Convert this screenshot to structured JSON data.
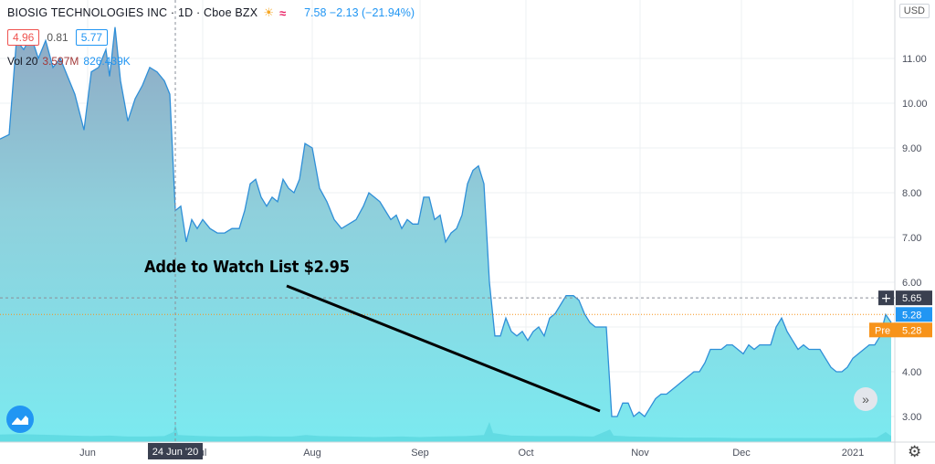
{
  "header": {
    "symbol": "BIOSIG TECHNOLOGIES INC · 1D · Cboe BZX",
    "sun_icon": "sun-icon",
    "premarket_icon": "premarket-icon",
    "price_line": "7.58  −2.13 (−21.94%)",
    "sell": "4.96",
    "spread": "0.81",
    "buy": "5.77",
    "vol_label": "Vol 20",
    "vol_value": "3.597M",
    "vol_ma": "826.439K"
  },
  "currency": "USD",
  "annotation": "Adde to Watch List $2.95",
  "crosshair_date": "24 Jun '20",
  "price_labels": {
    "crosshair": "5.65",
    "last": "5.28",
    "pre_label": "Pre",
    "pre": "5.28"
  },
  "colors": {
    "line": "#2f8fd8",
    "fill_top": "#8fa9c4",
    "fill_bottom": "#7beaf0",
    "volume": "#4fcfd9",
    "pre": "#f7931a",
    "dark": "#3a4050"
  },
  "chart_data": {
    "type": "area",
    "title": "BIOSIG TECHNOLOGIES INC · 1D · Cboe BZX",
    "ylim": [
      2.6,
      11.8
    ],
    "y_ticks": [
      "3.00",
      "4.00",
      "5.00",
      "6.00",
      "7.00",
      "8.00",
      "9.00",
      "10.00",
      "11.00"
    ],
    "x_ticks": [
      {
        "label": "Jun",
        "x": 96
      },
      {
        "label": "ul",
        "x": 222
      },
      {
        "label": "Aug",
        "x": 342
      },
      {
        "label": "Sep",
        "x": 460
      },
      {
        "label": "Oct",
        "x": 576
      },
      {
        "label": "Nov",
        "x": 701
      },
      {
        "label": "Dec",
        "x": 812
      },
      {
        "label": "2021",
        "x": 934
      }
    ],
    "x_range": [
      0,
      980
    ],
    "series": [
      {
        "values": [
          [
            0,
            9.2
          ],
          [
            10,
            9.3
          ],
          [
            18,
            11.4
          ],
          [
            26,
            11.2
          ],
          [
            34,
            11.5
          ],
          [
            42,
            11.0
          ],
          [
            50,
            11.4
          ],
          [
            58,
            10.8
          ],
          [
            66,
            11.0
          ],
          [
            74,
            10.6
          ],
          [
            82,
            10.2
          ],
          [
            92,
            9.4
          ],
          [
            100,
            10.7
          ],
          [
            108,
            10.8
          ],
          [
            116,
            11.2
          ],
          [
            120,
            10.6
          ],
          [
            126,
            11.7
          ],
          [
            132,
            10.5
          ],
          [
            140,
            9.6
          ],
          [
            148,
            10.1
          ],
          [
            156,
            10.4
          ],
          [
            164,
            10.8
          ],
          [
            172,
            10.7
          ],
          [
            180,
            10.5
          ],
          [
            186,
            10.2
          ],
          [
            192,
            7.6
          ],
          [
            198,
            7.7
          ],
          [
            204,
            6.9
          ],
          [
            210,
            7.4
          ],
          [
            216,
            7.2
          ],
          [
            222,
            7.4
          ],
          [
            230,
            7.2
          ],
          [
            238,
            7.1
          ],
          [
            246,
            7.1
          ],
          [
            254,
            7.2
          ],
          [
            262,
            7.2
          ],
          [
            268,
            7.6
          ],
          [
            274,
            8.2
          ],
          [
            280,
            8.3
          ],
          [
            286,
            7.9
          ],
          [
            292,
            7.7
          ],
          [
            298,
            7.9
          ],
          [
            304,
            7.8
          ],
          [
            310,
            8.3
          ],
          [
            316,
            8.1
          ],
          [
            322,
            8.0
          ],
          [
            328,
            8.3
          ],
          [
            334,
            9.1
          ],
          [
            342,
            9.0
          ],
          [
            350,
            8.1
          ],
          [
            358,
            7.8
          ],
          [
            366,
            7.4
          ],
          [
            374,
            7.2
          ],
          [
            382,
            7.3
          ],
          [
            390,
            7.4
          ],
          [
            398,
            7.7
          ],
          [
            404,
            8.0
          ],
          [
            410,
            7.9
          ],
          [
            416,
            7.8
          ],
          [
            422,
            7.6
          ],
          [
            428,
            7.4
          ],
          [
            434,
            7.5
          ],
          [
            440,
            7.2
          ],
          [
            446,
            7.4
          ],
          [
            452,
            7.3
          ],
          [
            458,
            7.3
          ],
          [
            464,
            7.9
          ],
          [
            470,
            7.9
          ],
          [
            476,
            7.4
          ],
          [
            482,
            7.5
          ],
          [
            488,
            6.9
          ],
          [
            494,
            7.1
          ],
          [
            500,
            7.2
          ],
          [
            506,
            7.5
          ],
          [
            512,
            8.2
          ],
          [
            518,
            8.5
          ],
          [
            524,
            8.6
          ],
          [
            530,
            8.2
          ],
          [
            536,
            6.0
          ],
          [
            542,
            4.8
          ],
          [
            548,
            4.8
          ],
          [
            554,
            5.2
          ],
          [
            560,
            4.9
          ],
          [
            566,
            4.8
          ],
          [
            572,
            4.9
          ],
          [
            578,
            4.7
          ],
          [
            584,
            4.9
          ],
          [
            590,
            5.0
          ],
          [
            596,
            4.8
          ],
          [
            602,
            5.2
          ],
          [
            608,
            5.3
          ],
          [
            614,
            5.5
          ],
          [
            620,
            5.7
          ],
          [
            628,
            5.7
          ],
          [
            634,
            5.6
          ],
          [
            640,
            5.3
          ],
          [
            646,
            5.1
          ],
          [
            652,
            5.0
          ],
          [
            658,
            5.0
          ],
          [
            664,
            5.0
          ],
          [
            670,
            3.0
          ],
          [
            676,
            3.0
          ],
          [
            682,
            3.3
          ],
          [
            688,
            3.3
          ],
          [
            694,
            3.0
          ],
          [
            700,
            3.1
          ],
          [
            706,
            3.0
          ],
          [
            712,
            3.2
          ],
          [
            718,
            3.4
          ],
          [
            724,
            3.5
          ],
          [
            730,
            3.5
          ],
          [
            736,
            3.6
          ],
          [
            742,
            3.7
          ],
          [
            748,
            3.8
          ],
          [
            754,
            3.9
          ],
          [
            760,
            4.0
          ],
          [
            766,
            4.0
          ],
          [
            772,
            4.2
          ],
          [
            778,
            4.5
          ],
          [
            784,
            4.5
          ],
          [
            790,
            4.5
          ],
          [
            796,
            4.6
          ],
          [
            802,
            4.6
          ],
          [
            808,
            4.5
          ],
          [
            814,
            4.4
          ],
          [
            820,
            4.6
          ],
          [
            826,
            4.5
          ],
          [
            832,
            4.6
          ],
          [
            838,
            4.6
          ],
          [
            844,
            4.6
          ],
          [
            850,
            5.0
          ],
          [
            856,
            5.2
          ],
          [
            862,
            4.9
          ],
          [
            868,
            4.7
          ],
          [
            874,
            4.5
          ],
          [
            880,
            4.6
          ],
          [
            886,
            4.5
          ],
          [
            892,
            4.5
          ],
          [
            898,
            4.5
          ],
          [
            904,
            4.3
          ],
          [
            910,
            4.1
          ],
          [
            916,
            4.0
          ],
          [
            922,
            4.0
          ],
          [
            928,
            4.1
          ],
          [
            934,
            4.3
          ],
          [
            940,
            4.4
          ],
          [
            946,
            4.5
          ],
          [
            952,
            4.6
          ],
          [
            958,
            4.6
          ],
          [
            964,
            4.8
          ],
          [
            970,
            5.28
          ],
          [
            976,
            5.1
          ]
        ]
      }
    ],
    "volume_ylim": [
      0,
      20
    ],
    "volume": [
      [
        0,
        1.5
      ],
      [
        20,
        1.6
      ],
      [
        40,
        1.5
      ],
      [
        60,
        1.4
      ],
      [
        80,
        1.3
      ],
      [
        100,
        1.2
      ],
      [
        120,
        1.3
      ],
      [
        140,
        1.1
      ],
      [
        160,
        1.1
      ],
      [
        180,
        1.2
      ],
      [
        190,
        2.0
      ],
      [
        192,
        3.8
      ],
      [
        195,
        1.4
      ],
      [
        220,
        1.2
      ],
      [
        240,
        1.1
      ],
      [
        260,
        1.1
      ],
      [
        280,
        1.2
      ],
      [
        300,
        1.1
      ],
      [
        320,
        1.1
      ],
      [
        335,
        1.4
      ],
      [
        350,
        1.2
      ],
      [
        380,
        1.1
      ],
      [
        410,
        1.0
      ],
      [
        440,
        1.1
      ],
      [
        460,
        1.0
      ],
      [
        480,
        1.1
      ],
      [
        510,
        1.2
      ],
      [
        530,
        1.4
      ],
      [
        536,
        4.0
      ],
      [
        540,
        1.8
      ],
      [
        560,
        1.3
      ],
      [
        590,
        1.2
      ],
      [
        620,
        1.2
      ],
      [
        650,
        1.1
      ],
      [
        668,
        2.5
      ],
      [
        672,
        1.3
      ],
      [
        690,
        1.1
      ],
      [
        720,
        1.0
      ],
      [
        750,
        0.9
      ],
      [
        780,
        0.9
      ],
      [
        810,
        0.8
      ],
      [
        840,
        0.8
      ],
      [
        870,
        0.8
      ],
      [
        900,
        0.8
      ],
      [
        930,
        0.8
      ],
      [
        960,
        0.9
      ],
      [
        970,
        2.0
      ],
      [
        976,
        1.2
      ]
    ]
  }
}
